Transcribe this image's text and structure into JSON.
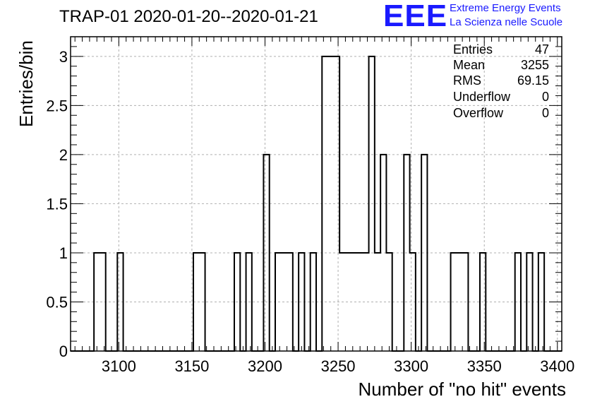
{
  "chart_data": {
    "type": "bar",
    "title": "TRAP-01 2020-01-20--2020-01-21",
    "xlabel": "Number of \"no hit\" events",
    "ylabel": "Entries/bin",
    "xlim": [
      3067,
      3403
    ],
    "ylim": [
      0,
      3.2
    ],
    "bin_width": 4,
    "grid": true,
    "x_ticks": [
      "3100",
      "3150",
      "3200",
      "3250",
      "3300",
      "3350",
      "3400"
    ],
    "y_ticks": [
      "0",
      "0.5",
      "1",
      "1.5",
      "2",
      "2.5",
      "3"
    ],
    "bins": [
      {
        "x": 3083,
        "value": 1
      },
      {
        "x": 3087,
        "value": 1
      },
      {
        "x": 3099,
        "value": 1
      },
      {
        "x": 3151,
        "value": 1
      },
      {
        "x": 3155,
        "value": 1
      },
      {
        "x": 3179,
        "value": 1
      },
      {
        "x": 3187,
        "value": 1
      },
      {
        "x": 3199,
        "value": 2
      },
      {
        "x": 3207,
        "value": 1
      },
      {
        "x": 3211,
        "value": 1
      },
      {
        "x": 3215,
        "value": 1
      },
      {
        "x": 3223,
        "value": 1
      },
      {
        "x": 3231,
        "value": 1
      },
      {
        "x": 3239,
        "value": 3
      },
      {
        "x": 3243,
        "value": 3
      },
      {
        "x": 3247,
        "value": 3
      },
      {
        "x": 3251,
        "value": 1
      },
      {
        "x": 3255,
        "value": 1
      },
      {
        "x": 3259,
        "value": 1
      },
      {
        "x": 3263,
        "value": 1
      },
      {
        "x": 3267,
        "value": 1
      },
      {
        "x": 3271,
        "value": 3
      },
      {
        "x": 3275,
        "value": 1
      },
      {
        "x": 3279,
        "value": 2
      },
      {
        "x": 3283,
        "value": 1
      },
      {
        "x": 3295,
        "value": 2
      },
      {
        "x": 3299,
        "value": 1
      },
      {
        "x": 3307,
        "value": 2
      },
      {
        "x": 3327,
        "value": 1
      },
      {
        "x": 3331,
        "value": 1
      },
      {
        "x": 3335,
        "value": 1
      },
      {
        "x": 3347,
        "value": 1
      },
      {
        "x": 3371,
        "value": 1
      },
      {
        "x": 3379,
        "value": 1
      },
      {
        "x": 3387,
        "value": 1
      }
    ]
  },
  "stats": [
    {
      "label": "Entries",
      "value": "47"
    },
    {
      "label": "Mean",
      "value": "3255"
    },
    {
      "label": "RMS",
      "value": "69.15"
    },
    {
      "label": "Underflow",
      "value": "0"
    },
    {
      "label": "Overflow",
      "value": "0"
    }
  ],
  "logo": {
    "mark": "EEE",
    "line1": "Extreme Energy Events",
    "line2": "La Scienza nelle Scuole",
    "color": "#1a1aff"
  }
}
